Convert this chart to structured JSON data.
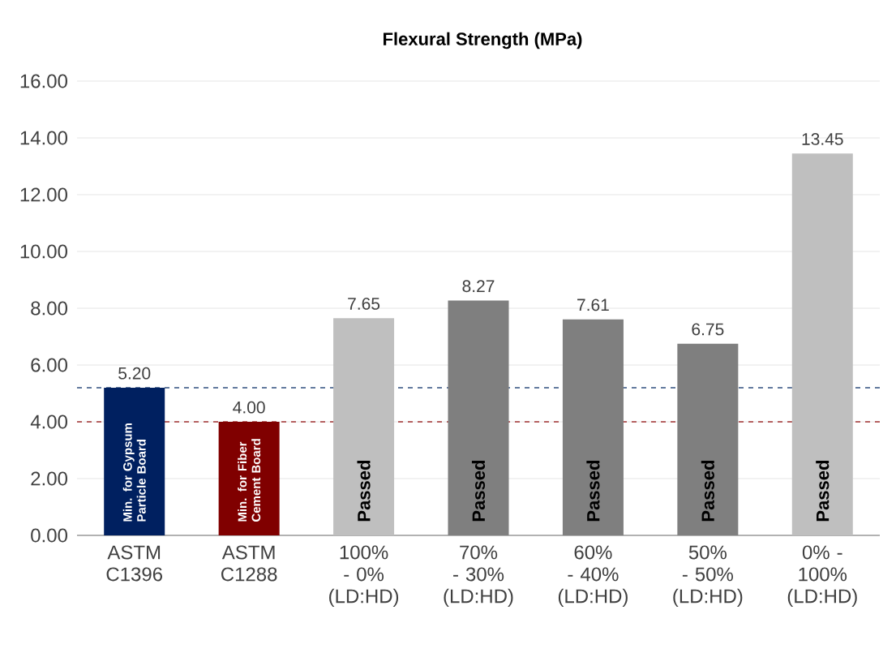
{
  "chart_data": {
    "type": "bar",
    "title": "Flexural Strength (MPa)",
    "categories": [
      "ASTM C1396",
      "ASTM C1288",
      "100% - 0% (LD:HD)",
      "70% - 30% (LD:HD)",
      "60% - 40% (LD:HD)",
      "50% - 50% (LD:HD)",
      "0% - 100% (LD:HD)"
    ],
    "values": [
      5.2,
      4.0,
      7.65,
      8.27,
      7.61,
      6.75,
      13.45
    ],
    "colors": [
      "#002060",
      "#800000",
      "#bfbfbf",
      "#7f7f7f",
      "#7f7f7f",
      "#7f7f7f",
      "#bfbfbf"
    ],
    "value_labels": [
      "5.20",
      "4.00",
      "7.65",
      "8.27",
      "7.61",
      "6.75",
      "13.45"
    ],
    "ylim": [
      0,
      16
    ],
    "yticks": [
      {
        "value": 0,
        "label": "0.00"
      },
      {
        "value": 2,
        "label": "2.00"
      },
      {
        "value": 4,
        "label": "4.00"
      },
      {
        "value": 6,
        "label": "6.00"
      },
      {
        "value": 8,
        "label": "8.00"
      },
      {
        "value": 10,
        "label": "10.00"
      },
      {
        "value": 12,
        "label": "12.00"
      },
      {
        "value": 14,
        "label": "14.00"
      },
      {
        "value": 16,
        "label": "16.00"
      }
    ],
    "grid": "y",
    "ref_lines": [
      {
        "axis": "y",
        "value": 5.2,
        "color": "#2f4f7f",
        "line_style": "dashed"
      },
      {
        "axis": "y",
        "value": 4.0,
        "color": "#a03030",
        "line_style": "dashed"
      }
    ],
    "annotations": [
      "Min. for Gypsum Particle Board",
      "Min. for Fiber Cement Board",
      "Passed",
      "Passed",
      "Passed",
      "Passed",
      "Passed"
    ]
  }
}
